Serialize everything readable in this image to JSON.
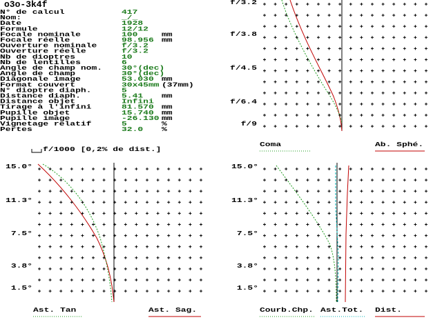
{
  "header": {
    "title": "o3o-3k4f"
  },
  "specs": [
    {
      "label": "N° de calcul",
      "value": "417"
    },
    {
      "label": "Nom:",
      "value": "_/_"
    },
    {
      "label": "Date",
      "value": "1928"
    },
    {
      "label": "Formule",
      "value": "12/12"
    },
    {
      "label": "Focale nominale",
      "value": "100",
      "unit": "mm"
    },
    {
      "label": "Focale réelle",
      "value": "98.956",
      "unit": "mm"
    },
    {
      "label": "Ouverture nominale",
      "value": "f/3.2"
    },
    {
      "label": "Ouverture réelle",
      "value": "f/3.2"
    },
    {
      "label": "Nb de dioptres",
      "value": "10"
    },
    {
      "label": "Nb de lentilles",
      "value": "6"
    },
    {
      "label": "Angle de champ nom.",
      "value": "30°(dec)"
    },
    {
      "label": "Angle de champ",
      "value": "30°(dec)"
    },
    {
      "label": "Diagonale image",
      "value": "53.030",
      "unit": "mm"
    },
    {
      "label": "Format couvert",
      "value": "30x45mm",
      "unit": "(37mm)"
    },
    {
      "label": "N° dioptre diaph.",
      "value": "5"
    },
    {
      "label": "Distance diaph.",
      "value": "5.41",
      "unit": "mm"
    },
    {
      "label": "Distance objet",
      "value": "Infini"
    },
    {
      "label": "Tirage à l'infini",
      "value": "81.570",
      "unit": "mm"
    },
    {
      "label": "Pupille objet",
      "value": "15.740",
      "unit": "mm"
    },
    {
      "label": "Pupille image",
      "value": "-26.130",
      "unit": "mm"
    },
    {
      "label": "Vignetage relatif",
      "value": "5",
      "unit": "%"
    },
    {
      "label": "Pertes",
      "value": "32.0",
      "unit": "%"
    }
  ],
  "panels": [
    {
      "y_labels": [
        "f/3.2",
        "f/3.8",
        "f/4.5",
        "f/6.4",
        "f/9"
      ],
      "legend": [
        "Coma",
        "Ab. Sphé."
      ]
    },
    {
      "title": "f/1000 [0,2% de dist.]",
      "y_labels": [
        "15.0°",
        "11.3°",
        "7.5°",
        "3.8°",
        "1.5°"
      ],
      "legend": [
        "Ast. Tan",
        "Ast. Sag."
      ]
    },
    {
      "y_labels": [
        "15.0°",
        "11.3°",
        "7.5°",
        "3.8°",
        "1.5°"
      ],
      "legend": [
        "Courb.Chp.",
        "Ast.Tot.",
        "Dist."
      ]
    }
  ]
}
